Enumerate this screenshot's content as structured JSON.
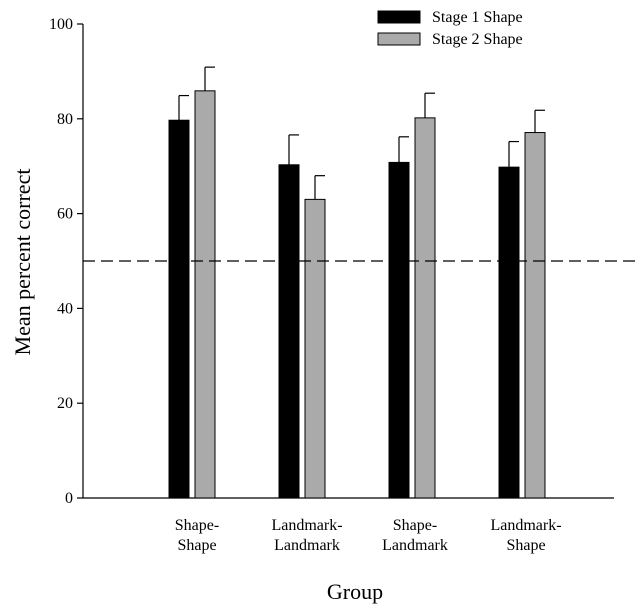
{
  "chart_data": {
    "type": "bar",
    "title": "",
    "xlabel": "Group",
    "ylabel": "Mean percent correct",
    "ylim": [
      0,
      100
    ],
    "yticks": [
      0,
      20,
      40,
      60,
      80,
      100
    ],
    "categories": [
      [
        "Shape-",
        "Shape"
      ],
      [
        "Landmark-",
        "Landmark"
      ],
      [
        "Shape-",
        "Landmark"
      ],
      [
        "Landmark-",
        "Shape"
      ]
    ],
    "series": [
      {
        "name": "Stage 1 Shape",
        "color": "#000000",
        "values": [
          79.7,
          70.3,
          70.8,
          69.8
        ],
        "errors": [
          5.2,
          6.3,
          5.4,
          5.4
        ]
      },
      {
        "name": "Stage 2 Shape",
        "color": "#aaaaaa",
        "values": [
          85.9,
          63.0,
          80.2,
          77.1
        ],
        "errors": [
          5.0,
          5.0,
          5.2,
          4.7
        ]
      }
    ],
    "reference_line": {
      "y": 50,
      "style": "dashed"
    },
    "legend_position": "top-right",
    "grid": false
  }
}
